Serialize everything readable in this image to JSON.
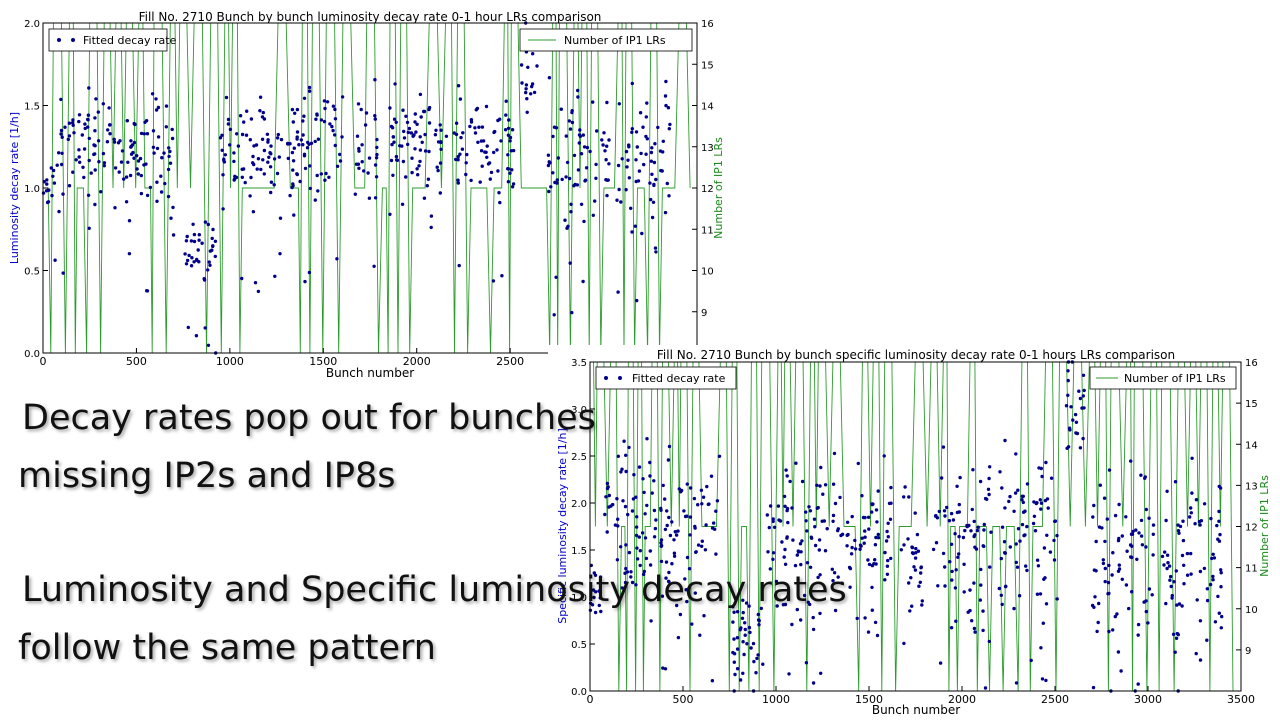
{
  "captions": [
    "Decay rates pop out for bunches",
    "missing IP2s and IP8s",
    "Luminosity and Specific luminosity decay rates",
    "follow the same pattern"
  ],
  "chart_data": [
    {
      "type": "scatter",
      "title": "Fill No. 2710 Bunch by bunch luminosity decay rate 0-1 hour LRs comparison",
      "xlabel": "Bunch number",
      "ylabel": "Luminosity decay rate [1/h]",
      "y2label": "Number of IP1 LRs",
      "xlim": [
        0,
        3500
      ],
      "ylim": [
        0,
        2.0
      ],
      "y2lim": [
        8,
        16
      ],
      "xticks": [
        0,
        500,
        1000,
        1500,
        2000,
        2500
      ],
      "yticks": [
        0.0,
        0.5,
        1.0,
        1.5,
        2.0
      ],
      "y2ticks": [
        9,
        10,
        11,
        12,
        13,
        14,
        15,
        16
      ],
      "legend": [
        {
          "name": "Fitted decay rate",
          "placement": "top-left"
        },
        {
          "name": "Number of IP1 LRs",
          "placement": "top-right"
        }
      ],
      "colors": {
        "scatter": "#00008b",
        "line": "#2e9b2e"
      },
      "series": [
        {
          "name": "Fitted decay rate",
          "kind": "scatter",
          "groups": [
            {
              "x": [
                0,
                65
              ],
              "mean": 1.0,
              "spread": 0.07
            },
            {
              "x": [
                75,
                360
              ],
              "mean": 1.27,
              "spread": 0.16
            },
            {
              "x": [
                380,
                700
              ],
              "mean": 1.22,
              "spread": 0.17
            },
            {
              "x": [
                760,
                930
              ],
              "mean": 0.62,
              "spread": 0.12
            },
            {
              "x": [
                950,
                1280
              ],
              "mean": 1.25,
              "spread": 0.16
            },
            {
              "x": [
                1300,
                1620
              ],
              "mean": 1.28,
              "spread": 0.16
            },
            {
              "x": [
                1670,
                1790
              ],
              "mean": 1.25,
              "spread": 0.15
            },
            {
              "x": [
                1840,
                2160
              ],
              "mean": 1.27,
              "spread": 0.16
            },
            {
              "x": [
                2200,
                2520
              ],
              "mean": 1.26,
              "spread": 0.16
            },
            {
              "x": [
                2560,
                2660
              ],
              "mean": 1.68,
              "spread": 0.16
            },
            {
              "x": [
                2700,
                3030
              ],
              "mean": 1.2,
              "spread": 0.2
            },
            {
              "x": [
                3070,
                3360
              ],
              "mean": 1.18,
              "spread": 0.2
            }
          ]
        },
        {
          "name": "Number of IP1 LRs",
          "kind": "line",
          "segments": [
            [
              8,
              11,
              8
            ],
            [
              16,
              12,
              16
            ],
            [
              16,
              12,
              16
            ]
          ]
        }
      ]
    },
    {
      "type": "scatter",
      "title": "Fill No. 2710 Bunch by bunch specific luminosity decay rate 0-1 hours LRs comparison",
      "xlabel": "Bunch number",
      "ylabel": "Specific luminosity decay rate [1/h]",
      "y2label": "Number of IP1 LRs",
      "xlim": [
        0,
        3500
      ],
      "ylim": [
        0,
        3.5
      ],
      "y2lim": [
        8,
        16
      ],
      "xticks": [
        0,
        500,
        1000,
        1500,
        2000,
        2500,
        3000,
        3500
      ],
      "yticks": [
        0.0,
        0.5,
        1.0,
        1.5,
        2.0,
        2.5,
        3.0,
        3.5
      ],
      "y2ticks": [
        9,
        10,
        11,
        12,
        13,
        14,
        15,
        16
      ],
      "legend": [
        {
          "name": "Fitted decay rate",
          "placement": "top-left"
        },
        {
          "name": "Number of IP1 LRs",
          "placement": "top-right"
        }
      ],
      "colors": {
        "scatter": "#00008b",
        "line": "#2e9b2e"
      },
      "series": [
        {
          "name": "Fitted decay rate",
          "kind": "scatter",
          "groups": [
            {
              "x": [
                0,
                65
              ],
              "mean": 1.0,
              "spread": 0.15
            },
            {
              "x": [
                75,
                360
              ],
              "mean": 1.75,
              "spread": 0.4
            },
            {
              "x": [
                380,
                700
              ],
              "mean": 1.7,
              "spread": 0.4
            },
            {
              "x": [
                760,
                930
              ],
              "mean": 0.55,
              "spread": 0.2
            },
            {
              "x": [
                950,
                1280
              ],
              "mean": 1.65,
              "spread": 0.45
            },
            {
              "x": [
                1300,
                1620
              ],
              "mean": 1.6,
              "spread": 0.42
            },
            {
              "x": [
                1670,
                1790
              ],
              "mean": 1.55,
              "spread": 0.4
            },
            {
              "x": [
                1840,
                2160
              ],
              "mean": 1.6,
              "spread": 0.4
            },
            {
              "x": [
                2200,
                2520
              ],
              "mean": 1.62,
              "spread": 0.4
            },
            {
              "x": [
                2560,
                2660
              ],
              "mean": 2.9,
              "spread": 0.3
            },
            {
              "x": [
                2700,
                3030
              ],
              "mean": 1.4,
              "spread": 0.45
            },
            {
              "x": [
                3070,
                3400
              ],
              "mean": 1.4,
              "spread": 0.45
            }
          ]
        },
        {
          "name": "Number of IP1 LRs",
          "kind": "line",
          "segments": [
            [
              8,
              11,
              8
            ],
            [
              16,
              12,
              16
            ],
            [
              16,
              12,
              16
            ]
          ]
        }
      ]
    }
  ]
}
